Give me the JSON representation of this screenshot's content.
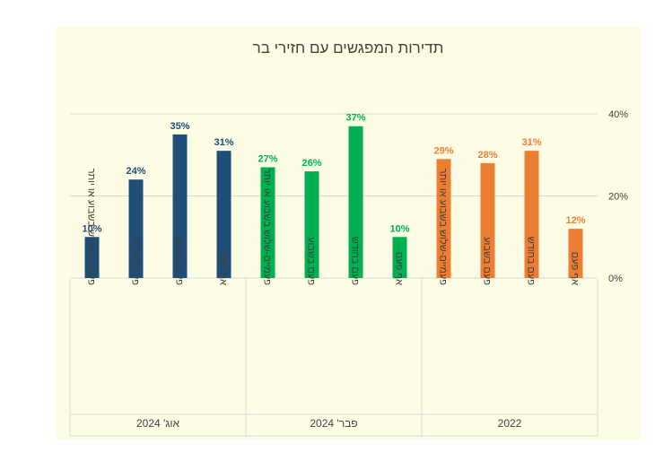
{
  "chart_data": {
    "type": "bar",
    "title": "תדירות המפגשים עם חזירי בר",
    "y_ticks": [
      "0%",
      "20%",
      "40%"
    ],
    "ylim": [
      0,
      40
    ],
    "grid": true,
    "legend": "none",
    "groups": [
      {
        "name": "אוג' 2024",
        "color": "#1f4e79",
        "categories": [
          "פעמיים-שלוש בשבוע או יותר",
          "פעם בשבוע",
          "פעם בחודש",
          "אף פעם"
        ],
        "values": [
          10,
          24,
          35,
          31
        ],
        "labels": [
          "10%",
          "24%",
          "35%",
          "31%"
        ]
      },
      {
        "name": "פבר' 2024",
        "color": "#00b050",
        "categories": [
          "פעמיים-שלוש בשבוע או יותר",
          "פעם בשבוע",
          "פעם בחודש",
          "אף פעם"
        ],
        "values": [
          27,
          26,
          37,
          10
        ],
        "labels": [
          "27%",
          "26%",
          "37%",
          "10%"
        ]
      },
      {
        "name": "2022",
        "color": "#ed7d31",
        "categories": [
          "פעמיים-שלוש בשבוע או יותר",
          "פעם בשבוע",
          "פעם בחודש",
          "אף פעם"
        ],
        "values": [
          29,
          28,
          31,
          12
        ],
        "labels": [
          "29%",
          "28%",
          "31%",
          "12%"
        ]
      }
    ]
  },
  "colors": {
    "panel_background": "#fdfde6",
    "gridline": "#d9d9d9",
    "axis_text": "#404040"
  }
}
